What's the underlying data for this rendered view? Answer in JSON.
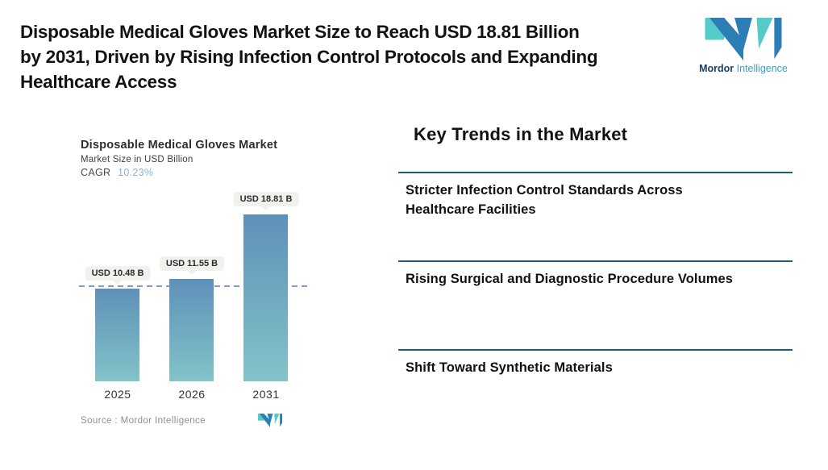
{
  "header": {
    "title_lines": [
      "Disposable Medical Gloves Market Size to Reach USD 18.81 Billion",
      "by 2031, Driven by Rising Infection Control Protocols and Expanding",
      "Healthcare Access"
    ]
  },
  "brand": {
    "primary": "Mordor",
    "secondary": "Intelligence",
    "colors": {
      "blue": "#2d7eb5",
      "teal": "#54cbc8",
      "navy": "#1c3e66",
      "light_blue": "#3e9fc0"
    }
  },
  "chart": {
    "title": "Disposable Medical Gloves Market",
    "subtitle": "Market Size in USD Billion",
    "cagr_label": "CAGR",
    "cagr_value": "10.23%",
    "source_label": "Source :  Mordor Intelligence"
  },
  "chart_data": {
    "type": "bar",
    "title": "Disposable Medical Gloves Market",
    "ylabel": "Market Size in USD Billion",
    "cagr": "10.23%",
    "categories": [
      "2025",
      "2026",
      "2031"
    ],
    "values": [
      10.48,
      11.55,
      18.81
    ],
    "value_labels": [
      "USD 10.48 B",
      "USD 11.55 B",
      "USD 18.81 B"
    ],
    "bar_colors": {
      "top": "#5f90b8",
      "bottom": "#83c3c9"
    },
    "reference_line": {
      "style": "dashed",
      "at_value": 10.48,
      "color": "#7d9dc2"
    },
    "grid": "off",
    "legend": "none"
  },
  "trends": {
    "heading": "Key Trends in the Market",
    "rule_color": "#1c5d80",
    "items": [
      "Stricter Infection Control Standards Across Healthcare Facilities",
      "Rising Surgical and Diagnostic Procedure Volumes",
      "Shift Toward Synthetic Materials"
    ]
  }
}
